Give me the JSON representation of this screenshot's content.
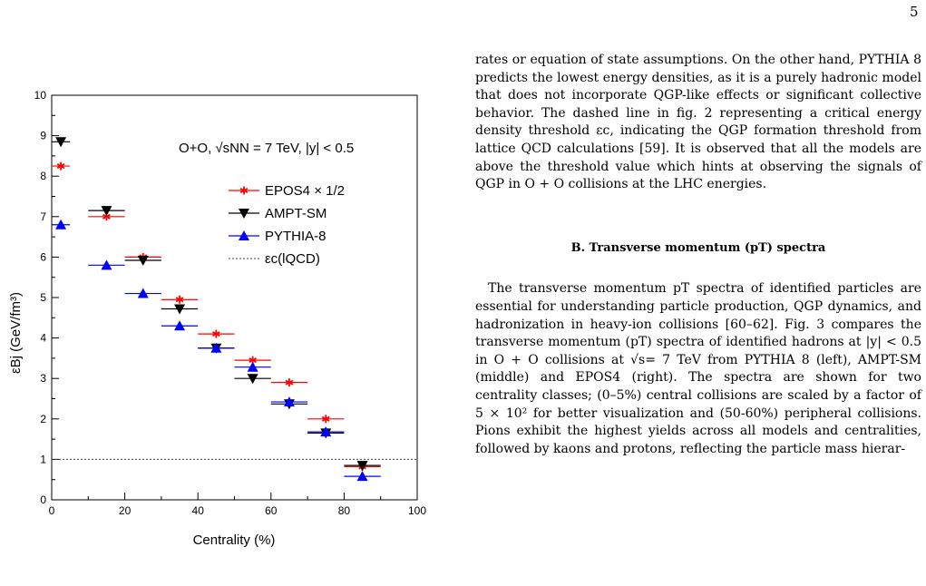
{
  "page_number": "5",
  "paragraph1": "rates or equation of state assumptions. On the other hand, PYTHIA 8 predicts the lowest energy densities, as it is a purely hadronic model that does not incorporate QGP-like effects or significant collective behavior. The dashed line in fig. 2 representing a critical energy density threshold εc, indicating the QGP formation threshold from lattice QCD calculations [59]. It is observed that all the models are above the threshold value which hints at observing the signals of QGP in O + O collisions at the LHC energies.",
  "section_heading": "B.   Transverse momentum (pT) spectra",
  "paragraph2": "The transverse momentum pT spectra of identified particles are essential for understanding particle production, QGP dynamics, and hadronization in heavy-ion collisions [60–62]. Fig. 3 compares the transverse momentum (pT) spectra of identified hadrons at |y| < 0.5 in O + O collisions at √s= 7 TeV from PYTHIA 8 (left), AMPT-SM (middle) and EPOS4 (right). The spectra are shown for two centrality classes; (0–5%) central collisions are scaled by a factor of 5 × 10² for better visualization and (50-60%) peripheral collisions. Pions exhibit the highest yields across all models and centralities, followed by kaons and protons, reflecting the particle mass hierar-",
  "chart_data": {
    "type": "scatter",
    "annotation": "O+O, √sNN = 7 TeV, |y| < 0.5",
    "xlabel": "Centrality (%)",
    "ylabel": "εBj (GeV/fm³)",
    "xlim": [
      0,
      100
    ],
    "ylim": [
      0,
      10
    ],
    "xticks": [
      0,
      20,
      40,
      60,
      80,
      100
    ],
    "yticks": [
      0,
      1,
      2,
      3,
      4,
      5,
      6,
      7,
      8,
      9,
      10
    ],
    "legend_placement": "top-right",
    "threshold": {
      "name": "εc(lQCD)",
      "value": 1.0
    },
    "centrality_bins": [
      [
        0,
        5
      ],
      [
        5,
        10
      ],
      [
        10,
        20
      ],
      [
        20,
        30
      ],
      [
        30,
        40
      ],
      [
        40,
        50
      ],
      [
        50,
        60
      ],
      [
        60,
        70
      ],
      [
        70,
        80
      ],
      [
        80,
        90
      ],
      [
        90,
        100
      ]
    ],
    "series": [
      {
        "name": "EPOS4 × 1/2",
        "color": "#ff0000",
        "marker": "star",
        "x": [
          2.5,
          7.5,
          15,
          25,
          35,
          45,
          55,
          65,
          75,
          85,
          95
        ],
        "values": [
          8.25,
          null,
          7.0,
          6.0,
          4.95,
          4.1,
          3.45,
          2.9,
          2.0,
          0.82,
          null
        ]
      },
      {
        "name": "AMPT-SM",
        "color": "#000000",
        "marker": "triangle-down",
        "x": [
          2.5,
          7.5,
          15,
          25,
          35,
          45,
          55,
          65,
          75,
          85,
          95
        ],
        "values": [
          8.85,
          null,
          7.15,
          5.92,
          4.72,
          3.75,
          3.0,
          2.37,
          1.65,
          0.85,
          null
        ]
      },
      {
        "name": "PYTHIA-8",
        "color": "#0000ff",
        "marker": "triangle-up",
        "x": [
          2.5,
          7.5,
          15,
          25,
          35,
          45,
          55,
          65,
          75,
          85,
          95
        ],
        "values": [
          6.8,
          null,
          5.8,
          5.1,
          4.3,
          3.75,
          3.28,
          2.42,
          1.68,
          0.58,
          null
        ]
      }
    ]
  }
}
